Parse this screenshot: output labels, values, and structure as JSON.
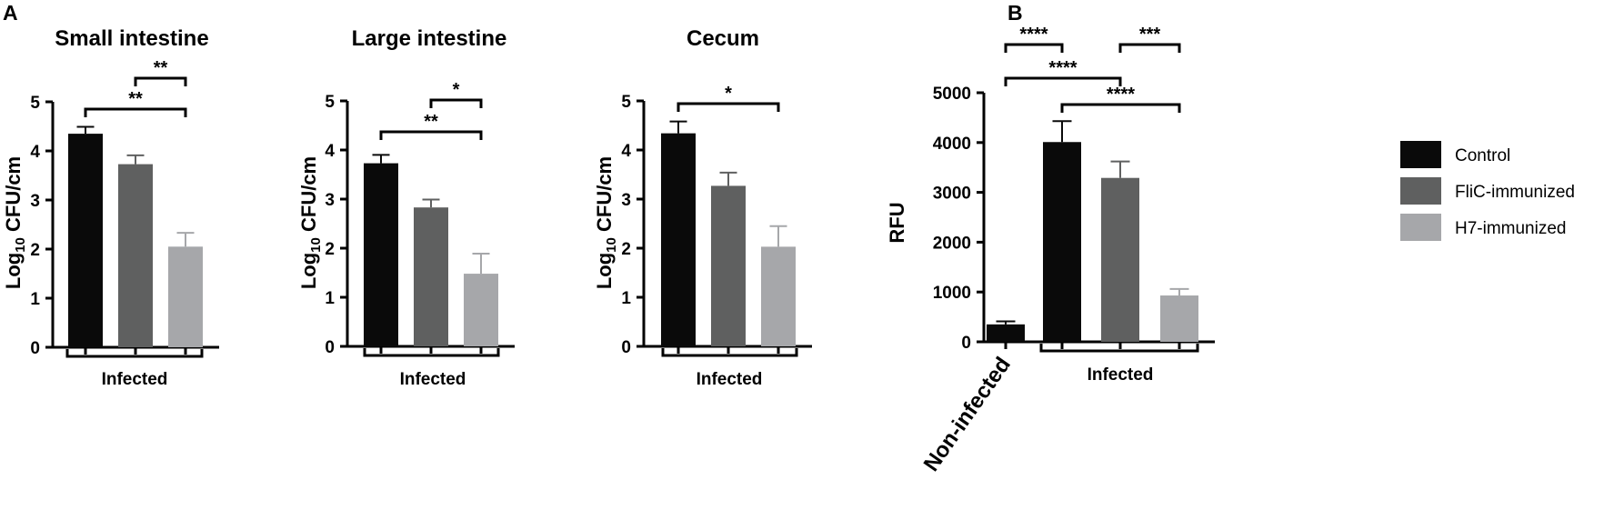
{
  "panel_labels": [
    "A",
    "B"
  ],
  "legend": {
    "items": [
      {
        "label": "Control",
        "color": "#0a0a0a"
      },
      {
        "label": "FliC-immunized",
        "color": "#5f6060"
      },
      {
        "label": "H7-immunized",
        "color": "#a6a7aa"
      }
    ]
  },
  "chart_data": [
    {
      "type": "bar",
      "title": "Small intestine",
      "ylabel_base": "Log",
      "ylabel_sub": "10",
      "ylabel_rest": " CFU/cm",
      "ylim": [
        0,
        5
      ],
      "yticks": [
        0,
        1,
        2,
        3,
        4,
        5
      ],
      "categories": [
        "Control",
        "FliC-immunized",
        "H7-immunized"
      ],
      "values": [
        4.35,
        3.73,
        2.05
      ],
      "errors": [
        0.14,
        0.18,
        0.28
      ],
      "colors": [
        "#0a0a0a",
        "#5f6060",
        "#a6a7aa"
      ],
      "group_label": "Infected",
      "significance": [
        {
          "from": 1,
          "to": 2,
          "label": "**"
        },
        {
          "from": 0,
          "to": 2,
          "label": "**"
        }
      ]
    },
    {
      "type": "bar",
      "title": "Large intestine",
      "ylabel_base": "Log",
      "ylabel_sub": "10",
      "ylabel_rest": " CFU/cm",
      "ylim": [
        0,
        5
      ],
      "yticks": [
        0,
        1,
        2,
        3,
        4,
        5
      ],
      "categories": [
        "Control",
        "FliC-immunized",
        "H7-immunized"
      ],
      "values": [
        3.73,
        2.83,
        1.48
      ],
      "errors": [
        0.17,
        0.16,
        0.41
      ],
      "colors": [
        "#0a0a0a",
        "#5f6060",
        "#a6a7aa"
      ],
      "group_label": "Infected",
      "significance": [
        {
          "from": 1,
          "to": 2,
          "label": "*"
        },
        {
          "from": 0,
          "to": 2,
          "label": "**"
        }
      ]
    },
    {
      "type": "bar",
      "title": "Cecum",
      "ylabel_base": "Log",
      "ylabel_sub": "10",
      "ylabel_rest": " CFU/cm",
      "ylim": [
        0,
        5
      ],
      "yticks": [
        0,
        1,
        2,
        3,
        4,
        5
      ],
      "categories": [
        "Control",
        "FliC-immunized",
        "H7-immunized"
      ],
      "values": [
        4.34,
        3.27,
        2.03
      ],
      "errors": [
        0.24,
        0.27,
        0.42
      ],
      "colors": [
        "#0a0a0a",
        "#5f6060",
        "#a6a7aa"
      ],
      "group_label": "Infected",
      "significance": [
        {
          "from": 0,
          "to": 2,
          "label": "*"
        }
      ]
    },
    {
      "type": "bar",
      "title": "",
      "ylabel": "RFU",
      "ylim": [
        0,
        5000
      ],
      "yticks": [
        0,
        1000,
        2000,
        3000,
        4000,
        5000
      ],
      "categories": [
        "Non-infected",
        "Control",
        "FliC-immunized",
        "H7-immunized"
      ],
      "values": [
        350,
        4010,
        3290,
        930
      ],
      "errors": [
        60,
        420,
        330,
        130
      ],
      "colors": [
        "#0a0a0a",
        "#0a0a0a",
        "#5f6060",
        "#a6a7aa"
      ],
      "tick_label": "Non-infected",
      "group_label": "Infected",
      "significance": [
        {
          "from": 0,
          "to": 1,
          "label": "****"
        },
        {
          "from": 2,
          "to": 3,
          "label": "***"
        },
        {
          "from": 0,
          "to": 2,
          "label": "****"
        },
        {
          "from": 1,
          "to": 3,
          "label": "****"
        }
      ]
    }
  ]
}
